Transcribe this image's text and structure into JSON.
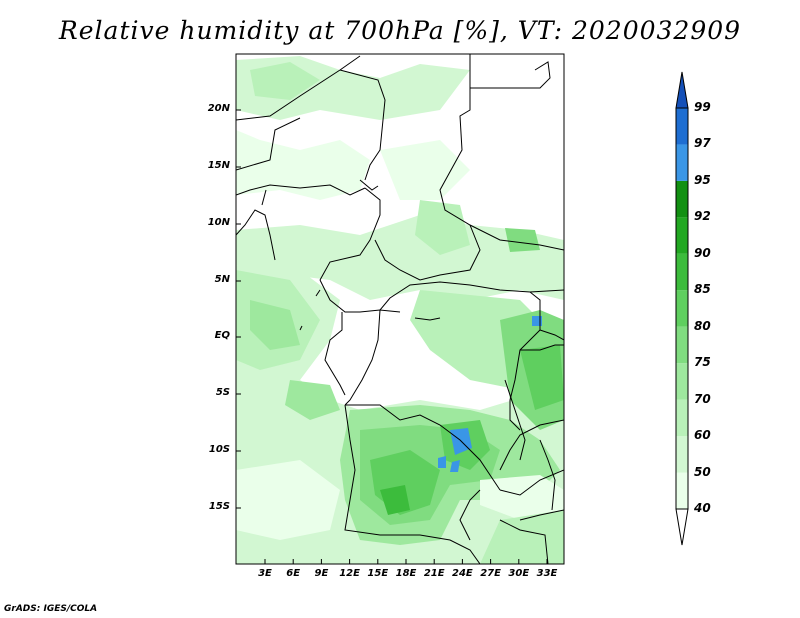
{
  "title": "Relative humidity at 700hPa [%], VT: 2020032909",
  "lat_labels": [
    "20N",
    "15N",
    "10N",
    "5N",
    "EQ",
    "5S",
    "10S",
    "15S"
  ],
  "lon_labels": [
    "3E",
    "6E",
    "9E",
    "12E",
    "15E",
    "18E",
    "21E",
    "24E",
    "27E",
    "30E",
    "33E"
  ],
  "colorbar": {
    "levels": [
      "40",
      "50",
      "60",
      "70",
      "75",
      "80",
      "85",
      "90",
      "92",
      "95",
      "97",
      "99"
    ],
    "colors": [
      "#ffffff",
      "#eaffea",
      "#d2f7d2",
      "#b9f1b9",
      "#9ee89e",
      "#80dc80",
      "#5fcf5f",
      "#3cbc3c",
      "#22a822",
      "#129012",
      "#3a96e6",
      "#1e6ed2",
      "#1450b8"
    ]
  },
  "credit": "GrADS: IGES/COLA"
}
